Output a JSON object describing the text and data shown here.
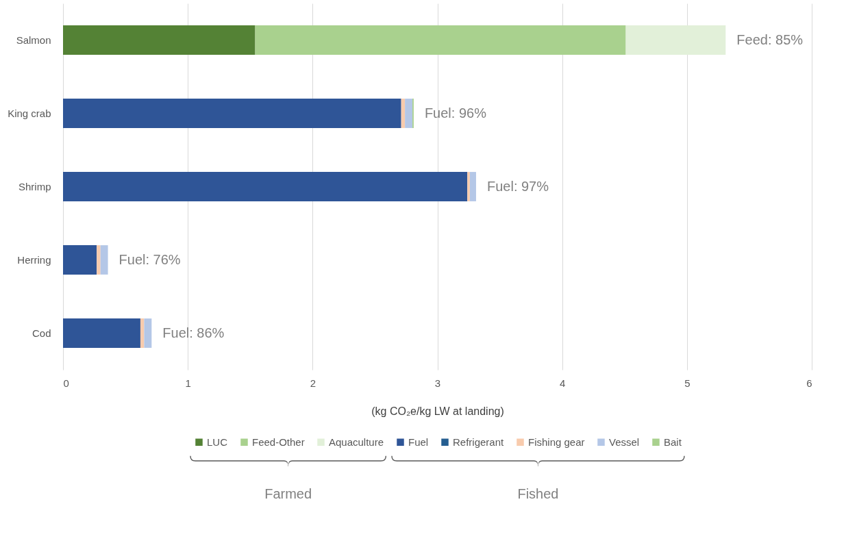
{
  "chart_data": {
    "type": "bar",
    "orientation": "horizontal",
    "stacked": true,
    "categories": [
      "Salmon",
      "King crab",
      "Shrimp",
      "Herring",
      "Cod"
    ],
    "series": [
      {
        "name": "LUC",
        "color": "#548235",
        "values": [
          1.54,
          null,
          null,
          null,
          null
        ]
      },
      {
        "name": "Feed-Other",
        "color": "#a9d18e",
        "values": [
          2.97,
          null,
          null,
          null,
          null
        ]
      },
      {
        "name": "Aquaculture",
        "color": "#e2f0d9",
        "values": [
          0.8,
          null,
          null,
          null,
          null
        ]
      },
      {
        "name": "Fuel",
        "color": "#2f5597",
        "values": [
          null,
          2.71,
          3.24,
          0.27,
          0.62
        ]
      },
      {
        "name": "Refrigerant",
        "color": "#255e91",
        "values": [
          null,
          null,
          null,
          null,
          null
        ]
      },
      {
        "name": "Fishing gear",
        "color": "#f8cbad",
        "values": [
          null,
          0.03,
          0.02,
          0.03,
          0.03
        ]
      },
      {
        "name": "Vessel",
        "color": "#b4c7e7",
        "values": [
          null,
          0.06,
          0.05,
          0.06,
          0.06
        ]
      },
      {
        "name": "Bait",
        "color": "#a9d18e",
        "values": [
          null,
          0.01,
          null,
          null,
          null
        ]
      }
    ],
    "xlabel": "(kg CO₂e/kg LW at landing)",
    "xlim": [
      0,
      6
    ],
    "xticks": [
      0,
      1,
      2,
      3,
      4,
      5,
      6
    ],
    "grid": "x",
    "legend": "bottom",
    "annotations": [
      {
        "text": "Feed: 85%",
        "x": 5.31,
        "y": "Salmon"
      },
      {
        "text": "Fuel: 96%",
        "x": 2.81,
        "y": "King crab"
      },
      {
        "text": "Fuel: 97%",
        "x": 3.31,
        "y": "Shrimp"
      },
      {
        "text": "Fuel: 76%",
        "x": 0.36,
        "y": "Herring"
      },
      {
        "text": "Fuel: 86%",
        "x": 0.71,
        "y": "Cod"
      },
      "Farmed",
      "Fished"
    ]
  }
}
